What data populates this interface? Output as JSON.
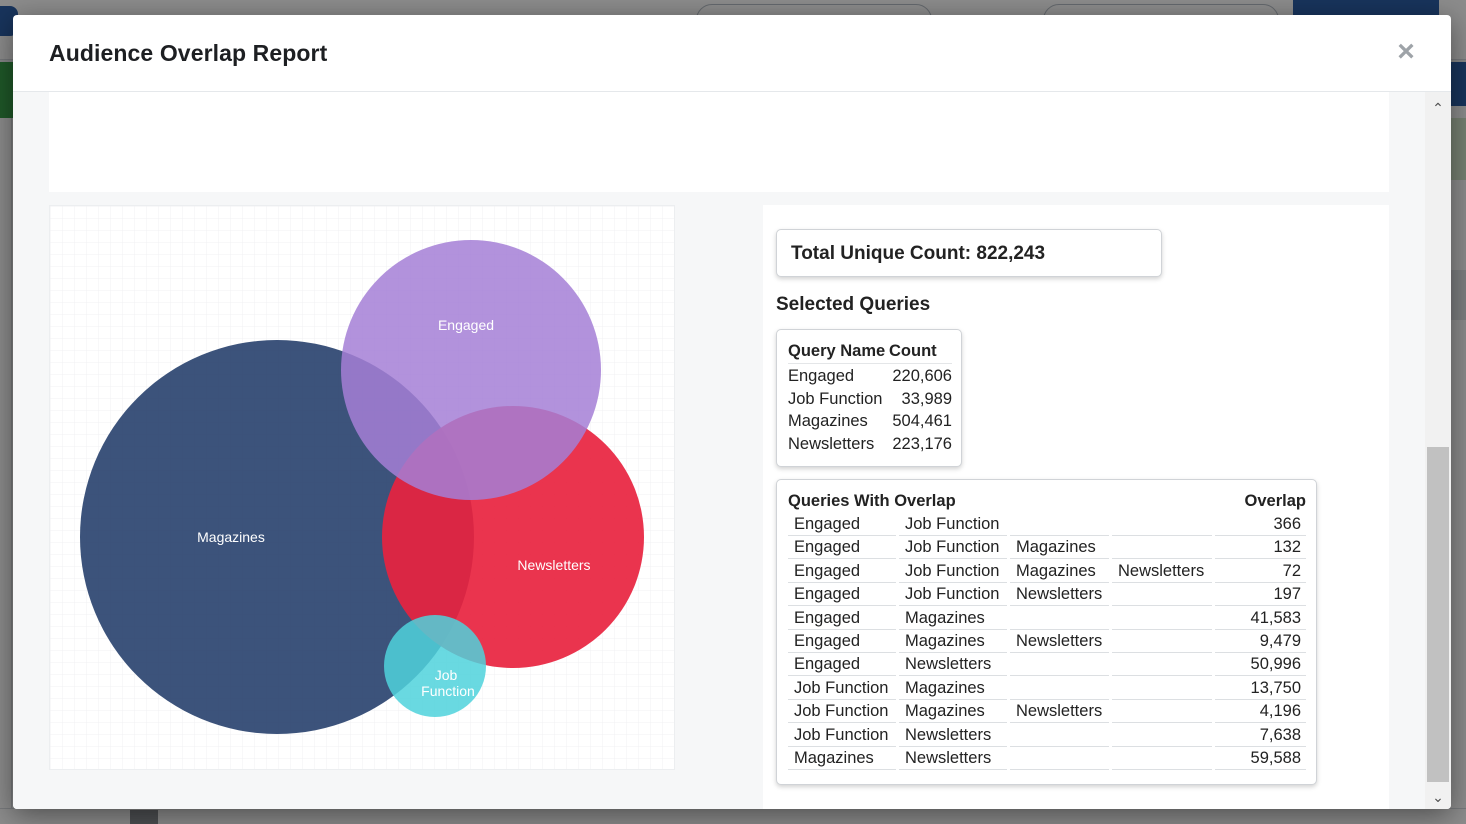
{
  "modal": {
    "title": "Audience Overlap Report",
    "close_icon": "×"
  },
  "scrollbar": {
    "up_icon": "⌃",
    "down_icon": "⌄"
  },
  "venn": {
    "sets": [
      {
        "label": "Engaged",
        "count": 220606,
        "color": "#a57fd6"
      },
      {
        "label": "Magazines",
        "count": 504461,
        "color": "#2b4470"
      },
      {
        "label": "Newsletters",
        "count": 223176,
        "color": "#e8233f"
      },
      {
        "label": "Job Function",
        "count": 33989,
        "color": "#4fd2dc"
      }
    ]
  },
  "summary": {
    "total_label": "Total Unique Count: 822,243",
    "selected_heading": "Selected Queries"
  },
  "queries": {
    "header_name": "Query Name",
    "header_count": "Count",
    "rows": [
      {
        "name": "Engaged",
        "count": "220,606"
      },
      {
        "name": "Job Function",
        "count": "33,989"
      },
      {
        "name": "Magazines",
        "count": "504,461"
      },
      {
        "name": "Newsletters",
        "count": "223,176"
      }
    ]
  },
  "overlaps": {
    "header_name": "Queries With Overlap",
    "header_overlap": "Overlap",
    "rows": [
      {
        "q1": "Engaged",
        "q2": "Job Function",
        "q3": "",
        "q4": "",
        "overlap": "366"
      },
      {
        "q1": "Engaged",
        "q2": "Job Function",
        "q3": "Magazines",
        "q4": "",
        "overlap": "132"
      },
      {
        "q1": "Engaged",
        "q2": "Job Function",
        "q3": "Magazines",
        "q4": "Newsletters",
        "overlap": "72"
      },
      {
        "q1": "Engaged",
        "q2": "Job Function",
        "q3": "Newsletters",
        "q4": "",
        "overlap": "197"
      },
      {
        "q1": "Engaged",
        "q2": "Magazines",
        "q3": "",
        "q4": "",
        "overlap": "41,583"
      },
      {
        "q1": "Engaged",
        "q2": "Magazines",
        "q3": "Newsletters",
        "q4": "",
        "overlap": "9,479"
      },
      {
        "q1": "Engaged",
        "q2": "Newsletters",
        "q3": "",
        "q4": "",
        "overlap": "50,996"
      },
      {
        "q1": "Job Function",
        "q2": "Magazines",
        "q3": "",
        "q4": "",
        "overlap": "13,750"
      },
      {
        "q1": "Job Function",
        "q2": "Magazines",
        "q3": "Newsletters",
        "q4": "",
        "overlap": "4,196"
      },
      {
        "q1": "Job Function",
        "q2": "Newsletters",
        "q3": "",
        "q4": "",
        "overlap": "7,638"
      },
      {
        "q1": "Magazines",
        "q2": "Newsletters",
        "q3": "",
        "q4": "",
        "overlap": "59,588"
      }
    ]
  }
}
